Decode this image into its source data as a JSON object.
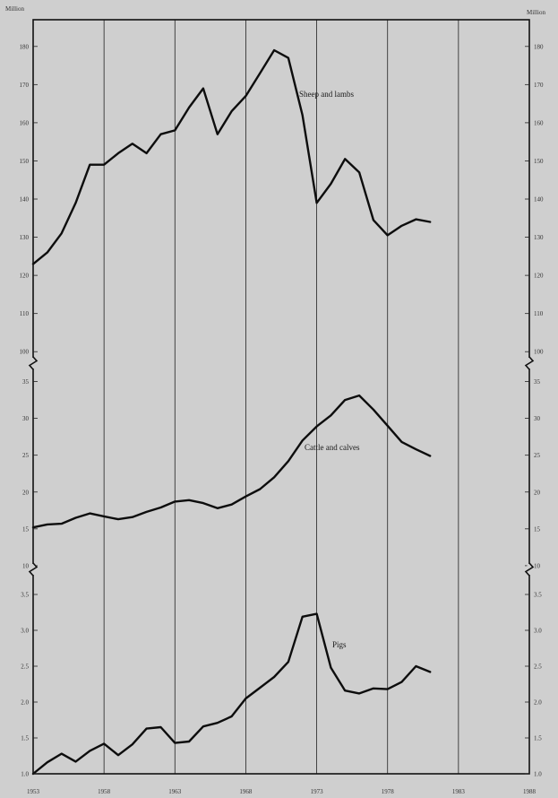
{
  "chart_data": {
    "type": "line",
    "units": {
      "left": "Million",
      "right": "Million"
    },
    "x_ticks": [
      "1953",
      "1958",
      "1963",
      "1968",
      "1973",
      "1978",
      "1983",
      "1988"
    ],
    "xlim": [
      1953,
      1988
    ],
    "panels": [
      {
        "id": "sheep",
        "ylim": [
          97,
          187
        ],
        "y_ticks": [
          100,
          110,
          120,
          130,
          140,
          150,
          160,
          170,
          180
        ],
        "y_tick_labels": [
          "100",
          "110",
          "120",
          "130",
          "140",
          "150",
          "160",
          "170",
          "180"
        ],
        "series": {
          "name": "Sheep and lambs",
          "x": [
            1953,
            1954,
            1955,
            1956,
            1957,
            1958,
            1959,
            1960,
            1961,
            1962,
            1963,
            1964,
            1965,
            1966,
            1967,
            1968,
            1969,
            1970,
            1971,
            1972,
            1973,
            1974,
            1975,
            1976,
            1977,
            1978,
            1979,
            1980,
            1981
          ],
          "y": [
            123,
            126,
            131,
            139,
            149,
            149,
            152,
            154.5,
            152,
            157,
            158,
            164,
            169,
            157,
            163,
            167,
            173,
            179,
            177,
            162,
            139,
            144,
            150.5,
            147,
            134.5,
            130.5,
            133,
            134.7,
            134
          ]
        }
      },
      {
        "id": "cattle",
        "ylim": [
          9.5,
          37.5
        ],
        "y_ticks": [
          10,
          15,
          20,
          25,
          30,
          35
        ],
        "y_tick_labels": [
          "10",
          "15",
          "20",
          "25",
          "30",
          "35"
        ],
        "series": {
          "name": "Cattle and calves",
          "x": [
            1953,
            1954,
            1955,
            1956,
            1957,
            1958,
            1959,
            1960,
            1961,
            1962,
            1963,
            1964,
            1965,
            1966,
            1967,
            1968,
            1969,
            1970,
            1971,
            1972,
            1973,
            1974,
            1975,
            1976,
            1977,
            1978,
            1979,
            1980,
            1981
          ],
          "y": [
            15.2,
            15.6,
            15.7,
            16.5,
            17.1,
            16.7,
            16.3,
            16.6,
            17.3,
            17.9,
            18.7,
            18.9,
            18.5,
            17.8,
            18.3,
            19.4,
            20.4,
            22,
            24.2,
            27,
            28.9,
            30.4,
            32.5,
            33.1,
            31.2,
            29,
            26.8,
            25.8,
            24.9
          ]
        }
      },
      {
        "id": "pigs",
        "ylim": [
          1.0,
          3.85
        ],
        "y_ticks": [
          1.0,
          1.5,
          2.0,
          2.5,
          3.0,
          3.5
        ],
        "y_tick_labels": [
          "1.0",
          "1.5",
          "2.0",
          "2.5",
          "3.0",
          "3.5"
        ],
        "series": {
          "name": "Pigs",
          "x": [
            1953,
            1954,
            1955,
            1956,
            1957,
            1958,
            1959,
            1960,
            1961,
            1962,
            1963,
            1964,
            1965,
            1966,
            1967,
            1968,
            1969,
            1970,
            1971,
            1972,
            1973,
            1974,
            1975,
            1976,
            1977,
            1978,
            1979,
            1980,
            1981
          ],
          "y": [
            1.0,
            1.16,
            1.28,
            1.17,
            1.32,
            1.42,
            1.26,
            1.41,
            1.63,
            1.65,
            1.43,
            1.45,
            1.66,
            1.71,
            1.8,
            2.05,
            2.2,
            2.35,
            2.56,
            3.19,
            3.23,
            2.48,
            2.16,
            2.12,
            2.19,
            2.18,
            2.28,
            2.5,
            2.42
          ]
        }
      }
    ]
  }
}
